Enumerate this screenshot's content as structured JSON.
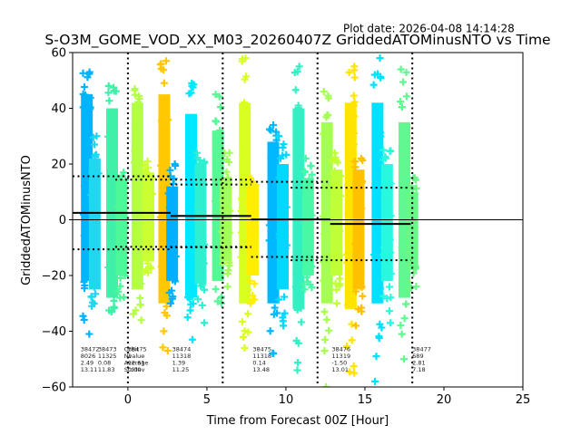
{
  "chart_data": {
    "type": "scatter",
    "title": "S-O3M_GOME_VOD_XX_M03_20260407Z GriddedATOMinusNTO vs Time",
    "subtitle": "Plot date: 2026-04-08 14:14:28",
    "xlabel": "Time from Forecast 00Z [Hour]",
    "ylabel": "GriddedATOMinusNTO",
    "xlim": [
      -3.5,
      25
    ],
    "ylim": [
      -60,
      60
    ],
    "xticks": [
      0,
      5,
      10,
      15,
      20,
      25
    ],
    "yticks": [
      -60,
      -40,
      -20,
      0,
      20,
      40,
      60
    ],
    "marker": "+",
    "zero_line": 0,
    "forecast_boundaries": [
      0,
      6,
      12,
      18
    ],
    "stats_labels": [
      "Orbit",
      "Nvalue",
      "Average",
      "Stddev"
    ],
    "segments": [
      {
        "orbit": "38472",
        "nvalue": "8026",
        "average": 2.49,
        "stddev": 13.11,
        "x_start": -3.5,
        "x_end": 2.7,
        "label_x": -3.0
      },
      {
        "orbit": "38473",
        "nvalue": "11325",
        "average": 0.08,
        "stddev": 11.83,
        "x_start": null,
        "x_end": null,
        "label_x": -1.9
      },
      {
        "orbit": "38475",
        "nvalue": "1",
        "average": 12.61,
        "stddev": 0.0,
        "x_start": null,
        "x_end": null,
        "label_x": 0.0
      },
      {
        "orbit": "38474",
        "nvalue": "11318",
        "average": 1.39,
        "stddev": 11.25,
        "x_start": 2.7,
        "x_end": 7.8,
        "label_x": 2.8
      },
      {
        "orbit": "38475",
        "nvalue": "11318",
        "average": 0.14,
        "stddev": 13.48,
        "x_start": 7.8,
        "x_end": 12.8,
        "label_x": 7.9
      },
      {
        "orbit": "38476",
        "nvalue": "11319",
        "average": -1.5,
        "stddev": 13.01,
        "x_start": 12.8,
        "x_end": 17.9,
        "label_x": 12.9
      },
      {
        "orbit": "38477",
        "nvalue": "689",
        "average": 2.81,
        "stddev": 7.18,
        "x_start": null,
        "x_end": null,
        "label_x": 18.0
      }
    ],
    "mean_std_lines": [
      {
        "x_start": -3.5,
        "x_end": 2.7,
        "mean": 2.49,
        "upper": 15.6,
        "lower": -10.62
      },
      {
        "x_start": -0.8,
        "x_end": 7.8,
        "mean": 1.39,
        "upper": 14.4,
        "lower": -9.7
      },
      {
        "x_start": 2.7,
        "x_end": 7.8,
        "mean": 1.39,
        "upper": 12.64,
        "lower": -9.86
      },
      {
        "x_start": 7.8,
        "x_end": 12.8,
        "mean": 0.14,
        "upper": 13.62,
        "lower": -13.34
      },
      {
        "x_start": 10.3,
        "x_end": 17.9,
        "mean": -1.5,
        "upper": 11.51,
        "lower": -14.51
      }
    ],
    "series": [
      {
        "x": -2.6,
        "core": [
          -22,
          45
        ],
        "outliers": [
          -41,
          53
        ],
        "color": "#00b4ff"
      },
      {
        "x": -2.1,
        "core": [
          -25,
          22
        ],
        "outliers": [
          -31,
          30
        ],
        "color": "#1ed8f0"
      },
      {
        "x": -1.0,
        "core": [
          -28,
          40
        ],
        "outliers": [
          -33,
          48
        ],
        "color": "#40f0a8"
      },
      {
        "x": -0.4,
        "core": [
          -20,
          14
        ],
        "outliers": [
          -28,
          17
        ],
        "color": "#4cf898"
      },
      {
        "x": 0.6,
        "core": [
          -25,
          42
        ],
        "outliers": [
          -36,
          47
        ],
        "color": "#b4ff44"
      },
      {
        "x": 1.3,
        "core": [
          -15,
          17
        ],
        "outliers": [
          -19,
          21
        ],
        "color": "#ccff30"
      },
      {
        "x": 2.3,
        "core": [
          -30,
          45
        ],
        "outliers": [
          -47,
          57
        ],
        "color": "#ffc800"
      },
      {
        "x": 2.8,
        "core": [
          -22,
          12
        ],
        "outliers": [
          -30,
          20
        ],
        "color": "#00b0ff"
      },
      {
        "x": 4.0,
        "core": [
          -28,
          38
        ],
        "outliers": [
          -43,
          49
        ],
        "color": "#00e8ff"
      },
      {
        "x": 4.6,
        "core": [
          -23,
          20
        ],
        "outliers": [
          -37,
          24
        ],
        "color": "#2ef0d0"
      },
      {
        "x": 5.7,
        "core": [
          -22,
          32
        ],
        "outliers": [
          -30,
          45
        ],
        "color": "#58f894"
      },
      {
        "x": 6.2,
        "core": [
          -15,
          15
        ],
        "outliers": [
          -24,
          24
        ],
        "color": "#a0ff58"
      },
      {
        "x": 7.4,
        "core": [
          -30,
          42
        ],
        "outliers": [
          -46,
          58
        ],
        "color": "#d8ff20"
      },
      {
        "x": 7.9,
        "core": [
          -20,
          12
        ],
        "outliers": [
          -30,
          15
        ],
        "color": "#ffee00"
      },
      {
        "x": 9.2,
        "core": [
          -30,
          28
        ],
        "outliers": [
          -48,
          34
        ],
        "color": "#00b8ff"
      },
      {
        "x": 9.8,
        "core": [
          -25,
          20
        ],
        "outliers": [
          -38,
          30
        ],
        "color": "#00d8ff"
      },
      {
        "x": 10.8,
        "core": [
          -32,
          40
        ],
        "outliers": [
          -54,
          55
        ],
        "color": "#30f0c4"
      },
      {
        "x": 11.4,
        "core": [
          -20,
          15
        ],
        "outliers": [
          -25,
          22
        ],
        "color": "#48f8a4"
      },
      {
        "x": 12.6,
        "core": [
          -30,
          35
        ],
        "outliers": [
          -60,
          46
        ],
        "color": "#a4ff50"
      },
      {
        "x": 13.2,
        "core": [
          -20,
          18
        ],
        "outliers": [
          -30,
          24
        ],
        "color": "#c0ff38"
      },
      {
        "x": 14.1,
        "core": [
          -32,
          42
        ],
        "outliers": [
          -55,
          55
        ],
        "color": "#ffe400"
      },
      {
        "x": 14.6,
        "core": [
          -25,
          18
        ],
        "outliers": [
          -38,
          22
        ],
        "color": "#ffc000"
      },
      {
        "x": 15.8,
        "core": [
          -30,
          42
        ],
        "outliers": [
          -58,
          58
        ],
        "color": "#00e0ff"
      },
      {
        "x": 16.4,
        "core": [
          -22,
          20
        ],
        "outliers": [
          -37,
          25
        ],
        "color": "#28f8e0"
      },
      {
        "x": 17.5,
        "core": [
          -28,
          35
        ],
        "outliers": [
          -50,
          54
        ],
        "color": "#60f890"
      },
      {
        "x": 18.0,
        "core": [
          -18,
          10
        ],
        "outliers": [
          -25,
          15
        ],
        "color": "#68f888"
      }
    ],
    "grid": false,
    "legend": "none"
  }
}
